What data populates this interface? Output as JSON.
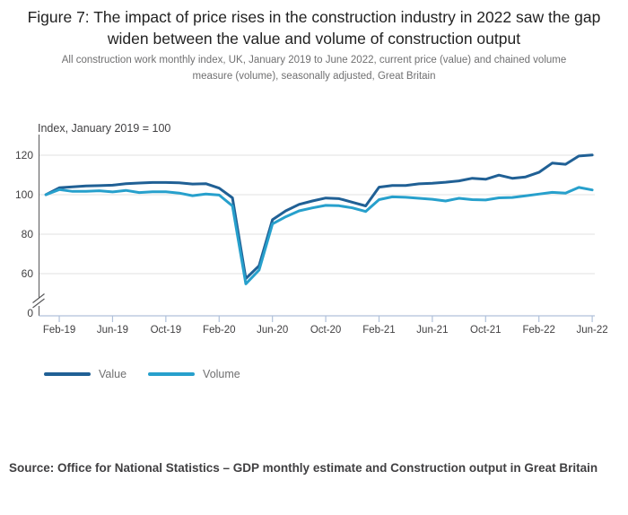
{
  "title": "Figure 7: The impact of price rises in the construction industry in 2022 saw the gap widen between the value and volume of construction output",
  "subtitle": "All construction work monthly index, UK, January 2019 to June 2022, current price (value) and chained volume measure (volume), seasonally adjusted, Great Britain",
  "source": "Source: Office for National Statistics – GDP monthly estimate and Construction output in Great Britain",
  "legend": [
    {
      "label": "Value",
      "color": "#206095"
    },
    {
      "label": "Volume",
      "color": "#27a0cc"
    }
  ],
  "colors": {
    "value_line": "#206095",
    "volume_line": "#27a0cc",
    "gridline": "#e2e2e2",
    "x_axis": "#b0c1da",
    "y_axis": "#58585a",
    "axis_text": "#414042",
    "title_text": "#222222",
    "muted_text": "#707071"
  },
  "chart_data": {
    "type": "line",
    "title": "Figure 7: The impact of price rises in the construction industry in 2022 saw the gap widen between the value and volume of construction output",
    "y_axis_label": "Index, January 2019 = 100",
    "xlabel": "",
    "ylabel": "Index, January 2019 = 100",
    "ylim": [
      0,
      130
    ],
    "axis_break_between": [
      0,
      60
    ],
    "grid": "horizontal",
    "legend_position": "bottom-left",
    "y_ticks": [
      0,
      60,
      80,
      100,
      120
    ],
    "x_tick_labels": [
      "Feb-19",
      "Jun-19",
      "Oct-19",
      "Feb-20",
      "Jun-20",
      "Oct-20",
      "Feb-21",
      "Jun-21",
      "Oct-21",
      "Feb-22",
      "Jun-22"
    ],
    "x": [
      "Jan-19",
      "Feb-19",
      "Mar-19",
      "Apr-19",
      "May-19",
      "Jun-19",
      "Jul-19",
      "Aug-19",
      "Sep-19",
      "Oct-19",
      "Nov-19",
      "Dec-19",
      "Jan-20",
      "Feb-20",
      "Mar-20",
      "Apr-20",
      "May-20",
      "Jun-20",
      "Jul-20",
      "Aug-20",
      "Sep-20",
      "Oct-20",
      "Nov-20",
      "Dec-20",
      "Jan-21",
      "Feb-21",
      "Mar-21",
      "Apr-21",
      "May-21",
      "Jun-21",
      "Jul-21",
      "Aug-21",
      "Sep-21",
      "Oct-21",
      "Nov-21",
      "Dec-21",
      "Jan-22",
      "Feb-22",
      "Mar-22",
      "Apr-22",
      "May-22",
      "Jun-22"
    ],
    "series": [
      {
        "name": "Value",
        "color": "#206095",
        "values": [
          100,
          103.5,
          104.0,
          104.4,
          104.6,
          104.8,
          105.6,
          105.9,
          106.2,
          106.2,
          106.0,
          105.4,
          105.6,
          103.3,
          98.4,
          57.5,
          64.0,
          87.3,
          91.8,
          95.1,
          96.8,
          98.3,
          98.0,
          96.2,
          94.3,
          103.8,
          104.7,
          104.7,
          105.5,
          105.8,
          106.3,
          107.0,
          108.3,
          107.8,
          109.9,
          108.3,
          109.0,
          111.3,
          116.0,
          115.4,
          119.6,
          120.1
        ]
      },
      {
        "name": "Volume",
        "color": "#27a0cc",
        "values": [
          100,
          102.6,
          101.7,
          101.7,
          102.0,
          101.4,
          102.2,
          101.1,
          101.5,
          101.5,
          100.8,
          99.5,
          100.3,
          99.8,
          94.3,
          54.8,
          61.8,
          85.2,
          88.8,
          91.8,
          93.3,
          94.6,
          94.4,
          93.3,
          91.5,
          97.5,
          98.9,
          98.7,
          98.2,
          97.7,
          96.8,
          98.2,
          97.5,
          97.3,
          98.4,
          98.6,
          99.4,
          100.3,
          101.2,
          100.8,
          103.7,
          102.4
        ]
      }
    ]
  }
}
